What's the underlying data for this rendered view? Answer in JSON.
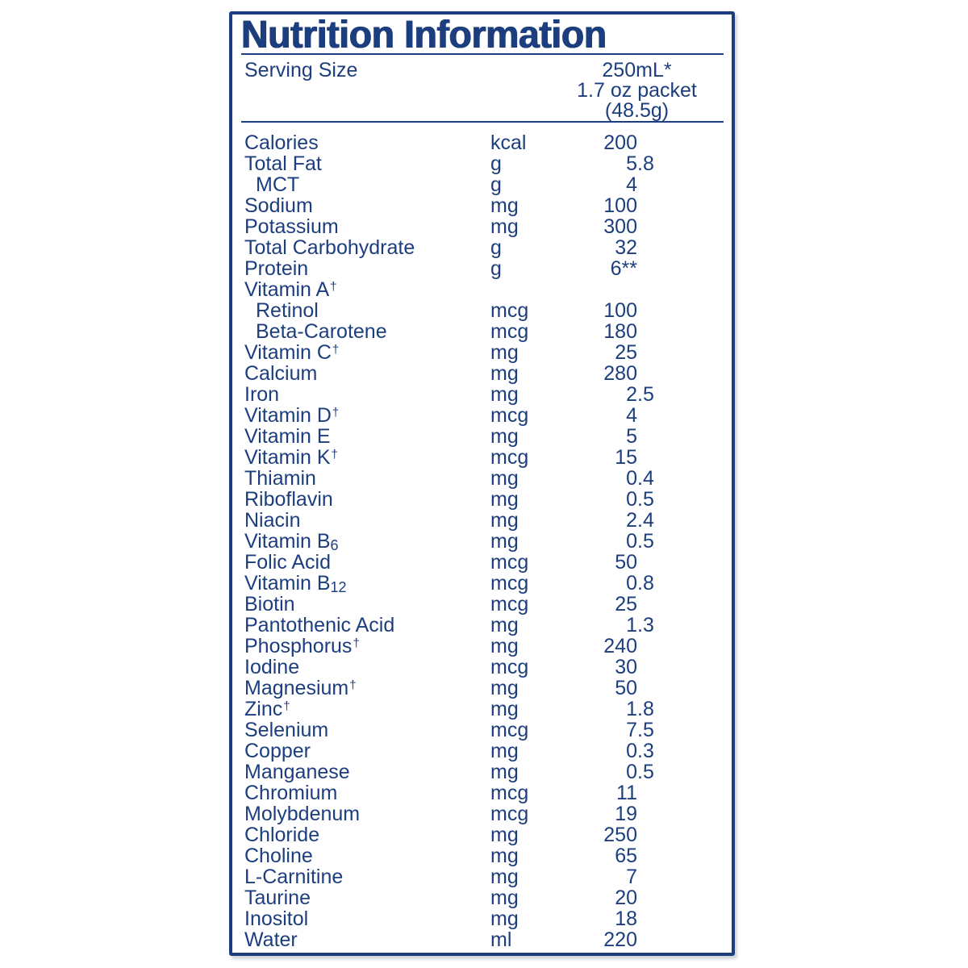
{
  "title": "Nutrition Information",
  "colors": {
    "ink": "#1d3e7e",
    "background": "#ffffff"
  },
  "serving": {
    "label": "Serving Size",
    "lines": [
      "250mL*",
      "1.7 oz packet",
      "(48.5g)"
    ]
  },
  "table": {
    "rows": [
      {
        "name": "Calories",
        "unit": "kcal",
        "value": "200"
      },
      {
        "name": "Total Fat",
        "unit": "g",
        "value": "5.8"
      },
      {
        "name": "MCT",
        "indent": true,
        "unit": "g",
        "value": "4"
      },
      {
        "name": "Sodium",
        "unit": "mg",
        "value": "100"
      },
      {
        "name": "Potassium",
        "unit": "mg",
        "value": "300"
      },
      {
        "name": "Total Carbohydrate",
        "unit": "g",
        "value": "32"
      },
      {
        "name": "Protein",
        "unit": "g",
        "value": "6**"
      },
      {
        "name": "Vitamin A",
        "sup": "†",
        "unit": "",
        "value": ""
      },
      {
        "name": "Retinol",
        "indent": true,
        "unit": "mcg",
        "value": "100"
      },
      {
        "name": "Beta-Carotene",
        "indent": true,
        "unit": "mcg",
        "value": "180"
      },
      {
        "name": "Vitamin C",
        "sup": "†",
        "unit": "mg",
        "value": "25"
      },
      {
        "name": "Calcium",
        "unit": "mg",
        "value": "280"
      },
      {
        "name": "Iron",
        "unit": "mg",
        "value": "2.5"
      },
      {
        "name": "Vitamin D",
        "sup": "†",
        "unit": "mcg",
        "value": "4"
      },
      {
        "name": "Vitamin E",
        "unit": "mg",
        "value": "5"
      },
      {
        "name": "Vitamin K",
        "sup": "†",
        "unit": "mcg",
        "value": "15"
      },
      {
        "name": "Thiamin",
        "unit": "mg",
        "value": "0.4"
      },
      {
        "name": "Riboflavin",
        "unit": "mg",
        "value": "0.5"
      },
      {
        "name": "Niacin",
        "unit": "mg",
        "value": "2.4"
      },
      {
        "name": "Vitamin B",
        "sub": "6",
        "unit": "mg",
        "value": "0.5"
      },
      {
        "name": "Folic Acid",
        "unit": "mcg",
        "value": "50"
      },
      {
        "name": "Vitamin B",
        "sub": "12",
        "unit": "mcg",
        "value": "0.8"
      },
      {
        "name": "Biotin",
        "unit": "mcg",
        "value": "25"
      },
      {
        "name": "Pantothenic Acid",
        "unit": "mg",
        "value": "1.3"
      },
      {
        "name": "Phosphorus",
        "sup": "†",
        "unit": "mg",
        "value": "240"
      },
      {
        "name": "Iodine",
        "unit": "mcg",
        "value": "30"
      },
      {
        "name": "Magnesium",
        "sup": "†",
        "unit": "mg",
        "value": "50"
      },
      {
        "name": "Zinc",
        "sup": "†",
        "unit": "mg",
        "value": "1.8"
      },
      {
        "name": "Selenium",
        "unit": "mcg",
        "value": "7.5"
      },
      {
        "name": "Copper",
        "unit": "mg",
        "value": "0.3"
      },
      {
        "name": "Manganese",
        "unit": "mg",
        "value": "0.5"
      },
      {
        "name": "Chromium",
        "unit": "mcg",
        "value": "11"
      },
      {
        "name": "Molybdenum",
        "unit": "mcg",
        "value": "19"
      },
      {
        "name": "Chloride",
        "unit": "mg",
        "value": "250"
      },
      {
        "name": "Choline",
        "unit": "mg",
        "value": "65"
      },
      {
        "name": "L-Carnitine",
        "unit": "mg",
        "value": "7"
      },
      {
        "name": "Taurine",
        "unit": "mg",
        "value": "20"
      },
      {
        "name": "Inositol",
        "unit": "mg",
        "value": "18"
      },
      {
        "name": "Water",
        "unit": "ml",
        "value": "220"
      }
    ]
  }
}
